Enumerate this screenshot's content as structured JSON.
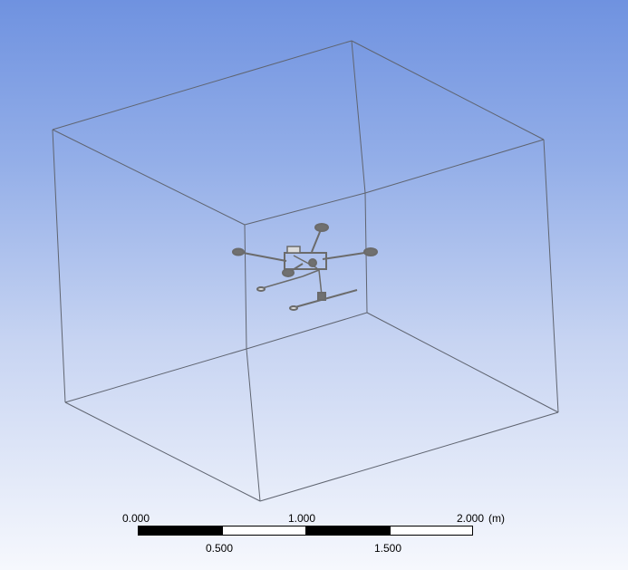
{
  "scale_bar": {
    "unit": "(m)",
    "ticks_top": [
      "0.000",
      "1.000",
      "2.000"
    ],
    "ticks_bottom": [
      "0.500",
      "1.500"
    ]
  },
  "colors": {
    "background_top": "#6f92e0",
    "background_bottom": "#f6f8fd",
    "box_edge": "#5f6470",
    "model": "#6b6b6b"
  },
  "icons": [
    "domain-box-wireframe",
    "drone-geometry"
  ]
}
